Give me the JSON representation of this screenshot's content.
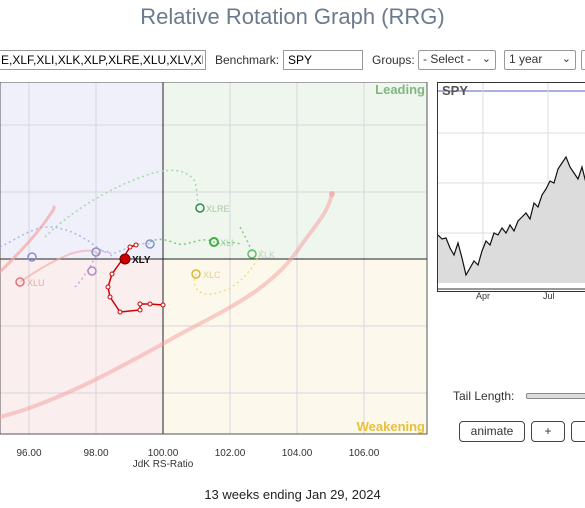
{
  "title": "Relative Rotation Graph (RRG)",
  "toolbar": {
    "tickers_value": "E,XLF,XLI,XLK,XLP,XLRE,XLU,XLV,XL",
    "benchmark_label": "Benchmark:",
    "benchmark_value": "SPY",
    "groups_label": "Groups:",
    "groups_selected": "- Select -",
    "period_selected": "1 year"
  },
  "rrg": {
    "quadrants": {
      "leading": "Leading",
      "weakening": "Weakening",
      "leading_color": "#7fb87f",
      "weakening_color": "#e8c03a"
    },
    "x_axis": {
      "label": "JdK RS-Ratio",
      "ticks": [
        "96.00",
        "98.00",
        "100.00",
        "102.00",
        "104.00",
        "106.00"
      ]
    },
    "labels": {
      "xly": "XLY",
      "xlre": "XLRE",
      "xli": "XLI",
      "xlk": "XLK",
      "xlc": "XLC",
      "xlu": "XLU"
    },
    "series_colors": {
      "xly": "#cc0000",
      "xlre": "#2e8b57",
      "xli": "#44aa44",
      "xlk": "#66bb66",
      "xlc": "#e6c84a",
      "xlu": "#e57373",
      "xlv": "#f4a6a6",
      "xlb": "#a0a8e0",
      "xlp": "#d7a0e0"
    }
  },
  "spy_panel": {
    "label": "SPY",
    "months": [
      "Apr",
      "Jul"
    ]
  },
  "controls": {
    "tail_length_label": "Tail Length:",
    "animate_label": "animate",
    "plus_label": "+"
  },
  "footer": "13 weeks ending Jan 29, 2024"
}
